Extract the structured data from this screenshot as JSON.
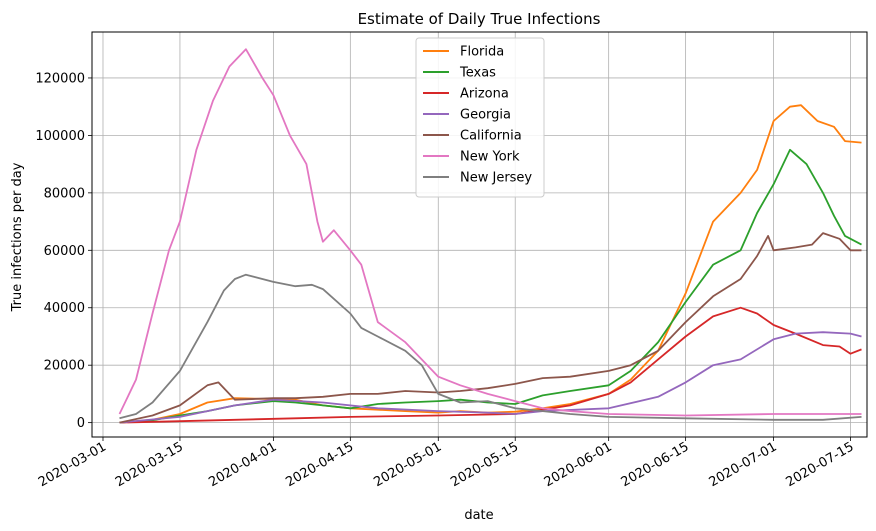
{
  "chart_data": {
    "type": "line",
    "title": "Estimate of Daily True Infections",
    "xlabel": "date",
    "ylabel": "True infections per day",
    "x_type": "date",
    "xlim": [
      "2020-02-28",
      "2020-07-18"
    ],
    "ylim": [
      -5000,
      136000
    ],
    "grid": true,
    "legend_position": "top-center",
    "x_ticks": [
      "2020-03-01",
      "2020-03-15",
      "2020-04-01",
      "2020-04-15",
      "2020-05-01",
      "2020-05-15",
      "2020-06-01",
      "2020-06-15",
      "2020-07-01",
      "2020-07-15"
    ],
    "y_ticks": [
      0,
      20000,
      40000,
      60000,
      80000,
      100000,
      120000
    ],
    "y_tick_labels": [
      "0",
      "20000",
      "40000",
      "60000",
      "80000",
      "100000",
      "120000"
    ],
    "series": [
      {
        "name": "Florida",
        "color": "#ff7f0e",
        "points": [
          [
            "2020-03-04",
            0
          ],
          [
            "2020-03-10",
            1000
          ],
          [
            "2020-03-15",
            3000
          ],
          [
            "2020-03-20",
            7000
          ],
          [
            "2020-03-25",
            8500
          ],
          [
            "2020-04-01",
            8200
          ],
          [
            "2020-04-05",
            8000
          ],
          [
            "2020-04-10",
            6000
          ],
          [
            "2020-04-15",
            5000
          ],
          [
            "2020-04-20",
            4500
          ],
          [
            "2020-04-25",
            4000
          ],
          [
            "2020-05-01",
            3500
          ],
          [
            "2020-05-05",
            4000
          ],
          [
            "2020-05-10",
            3500
          ],
          [
            "2020-05-15",
            3800
          ],
          [
            "2020-05-20",
            5000
          ],
          [
            "2020-05-25",
            6500
          ],
          [
            "2020-06-01",
            10000
          ],
          [
            "2020-06-05",
            15000
          ],
          [
            "2020-06-10",
            25000
          ],
          [
            "2020-06-15",
            45000
          ],
          [
            "2020-06-20",
            70000
          ],
          [
            "2020-06-25",
            80000
          ],
          [
            "2020-06-28",
            88000
          ],
          [
            "2020-07-01",
            105000
          ],
          [
            "2020-07-04",
            110000
          ],
          [
            "2020-07-06",
            110500
          ],
          [
            "2020-07-09",
            105000
          ],
          [
            "2020-07-12",
            103000
          ],
          [
            "2020-07-14",
            98000
          ],
          [
            "2020-07-17",
            97500
          ]
        ]
      },
      {
        "name": "Texas",
        "color": "#2ca02c",
        "points": [
          [
            "2020-03-04",
            0
          ],
          [
            "2020-03-10",
            800
          ],
          [
            "2020-03-15",
            2500
          ],
          [
            "2020-03-20",
            4000
          ],
          [
            "2020-03-25",
            6000
          ],
          [
            "2020-04-01",
            7500
          ],
          [
            "2020-04-05",
            7000
          ],
          [
            "2020-04-10",
            6000
          ],
          [
            "2020-04-15",
            5000
          ],
          [
            "2020-04-20",
            6500
          ],
          [
            "2020-04-25",
            7000
          ],
          [
            "2020-05-01",
            7500
          ],
          [
            "2020-05-05",
            8000
          ],
          [
            "2020-05-10",
            7000
          ],
          [
            "2020-05-15",
            6500
          ],
          [
            "2020-05-20",
            9500
          ],
          [
            "2020-05-25",
            11000
          ],
          [
            "2020-06-01",
            13000
          ],
          [
            "2020-06-05",
            18000
          ],
          [
            "2020-06-10",
            28000
          ],
          [
            "2020-06-15",
            42000
          ],
          [
            "2020-06-20",
            55000
          ],
          [
            "2020-06-25",
            60000
          ],
          [
            "2020-06-28",
            73000
          ],
          [
            "2020-07-01",
            83000
          ],
          [
            "2020-07-04",
            95000
          ],
          [
            "2020-07-07",
            90000
          ],
          [
            "2020-07-10",
            80000
          ],
          [
            "2020-07-12",
            72000
          ],
          [
            "2020-07-14",
            65000
          ],
          [
            "2020-07-17",
            62000
          ]
        ]
      },
      {
        "name": "Arizona",
        "color": "#d62728",
        "points": [
          [
            "2020-03-04",
            0
          ],
          [
            "2020-03-15",
            500
          ],
          [
            "2020-03-25",
            1000
          ],
          [
            "2020-04-05",
            1500
          ],
          [
            "2020-04-15",
            2000
          ],
          [
            "2020-05-01",
            2500
          ],
          [
            "2020-05-15",
            3000
          ],
          [
            "2020-05-25",
            6000
          ],
          [
            "2020-06-01",
            10000
          ],
          [
            "2020-06-05",
            14000
          ],
          [
            "2020-06-10",
            22000
          ],
          [
            "2020-06-15",
            30000
          ],
          [
            "2020-06-20",
            37000
          ],
          [
            "2020-06-25",
            40000
          ],
          [
            "2020-06-28",
            38000
          ],
          [
            "2020-07-01",
            34000
          ],
          [
            "2020-07-05",
            31000
          ],
          [
            "2020-07-10",
            27000
          ],
          [
            "2020-07-13",
            26500
          ],
          [
            "2020-07-15",
            24000
          ],
          [
            "2020-07-17",
            25500
          ]
        ]
      },
      {
        "name": "Georgia",
        "color": "#9467bd",
        "points": [
          [
            "2020-03-04",
            0
          ],
          [
            "2020-03-15",
            2000
          ],
          [
            "2020-03-25",
            6000
          ],
          [
            "2020-04-01",
            8000
          ],
          [
            "2020-04-10",
            7000
          ],
          [
            "2020-04-20",
            5000
          ],
          [
            "2020-05-01",
            4000
          ],
          [
            "2020-05-10",
            3500
          ],
          [
            "2020-05-15",
            3000
          ],
          [
            "2020-05-20",
            4000
          ],
          [
            "2020-06-01",
            5000
          ],
          [
            "2020-06-10",
            9000
          ],
          [
            "2020-06-15",
            14000
          ],
          [
            "2020-06-20",
            20000
          ],
          [
            "2020-06-25",
            22000
          ],
          [
            "2020-07-01",
            29000
          ],
          [
            "2020-07-05",
            31000
          ],
          [
            "2020-07-10",
            31500
          ],
          [
            "2020-07-15",
            31000
          ],
          [
            "2020-07-17",
            30000
          ]
        ]
      },
      {
        "name": "California",
        "color": "#8c564b",
        "points": [
          [
            "2020-03-04",
            0
          ],
          [
            "2020-03-10",
            2500
          ],
          [
            "2020-03-15",
            6000
          ],
          [
            "2020-03-20",
            13000
          ],
          [
            "2020-03-22",
            14000
          ],
          [
            "2020-03-25",
            8000
          ],
          [
            "2020-04-01",
            8500
          ],
          [
            "2020-04-05",
            8500
          ],
          [
            "2020-04-10",
            9000
          ],
          [
            "2020-04-15",
            10000
          ],
          [
            "2020-04-20",
            10000
          ],
          [
            "2020-04-25",
            11000
          ],
          [
            "2020-05-01",
            10500
          ],
          [
            "2020-05-05",
            11000
          ],
          [
            "2020-05-10",
            12000
          ],
          [
            "2020-05-15",
            13500
          ],
          [
            "2020-05-20",
            15500
          ],
          [
            "2020-05-25",
            16000
          ],
          [
            "2020-06-01",
            18000
          ],
          [
            "2020-06-05",
            20000
          ],
          [
            "2020-06-10",
            25000
          ],
          [
            "2020-06-15",
            35000
          ],
          [
            "2020-06-20",
            44000
          ],
          [
            "2020-06-25",
            50000
          ],
          [
            "2020-06-28",
            58000
          ],
          [
            "2020-06-30",
            65000
          ],
          [
            "2020-07-01",
            60000
          ],
          [
            "2020-07-05",
            61000
          ],
          [
            "2020-07-08",
            62000
          ],
          [
            "2020-07-10",
            66000
          ],
          [
            "2020-07-13",
            64000
          ],
          [
            "2020-07-15",
            60000
          ],
          [
            "2020-07-17",
            60000
          ]
        ]
      },
      {
        "name": "New York",
        "color": "#e377c2",
        "points": [
          [
            "2020-03-04",
            3000
          ],
          [
            "2020-03-07",
            15000
          ],
          [
            "2020-03-10",
            38000
          ],
          [
            "2020-03-13",
            60000
          ],
          [
            "2020-03-15",
            70000
          ],
          [
            "2020-03-18",
            95000
          ],
          [
            "2020-03-21",
            112000
          ],
          [
            "2020-03-24",
            124000
          ],
          [
            "2020-03-27",
            130000
          ],
          [
            "2020-03-30",
            120000
          ],
          [
            "2020-04-01",
            114000
          ],
          [
            "2020-04-04",
            100000
          ],
          [
            "2020-04-07",
            90000
          ],
          [
            "2020-04-09",
            70000
          ],
          [
            "2020-04-10",
            63000
          ],
          [
            "2020-04-12",
            67000
          ],
          [
            "2020-04-15",
            60000
          ],
          [
            "2020-04-17",
            55000
          ],
          [
            "2020-04-20",
            35000
          ],
          [
            "2020-04-25",
            28000
          ],
          [
            "2020-05-01",
            16000
          ],
          [
            "2020-05-05",
            13000
          ],
          [
            "2020-05-10",
            10000
          ],
          [
            "2020-05-15",
            7500
          ],
          [
            "2020-05-20",
            5000
          ],
          [
            "2020-05-25",
            4000
          ],
          [
            "2020-06-01",
            3000
          ],
          [
            "2020-06-15",
            2500
          ],
          [
            "2020-07-01",
            3000
          ],
          [
            "2020-07-17",
            3000
          ]
        ]
      },
      {
        "name": "New Jersey",
        "color": "#7f7f7f",
        "points": [
          [
            "2020-03-04",
            1500
          ],
          [
            "2020-03-07",
            3000
          ],
          [
            "2020-03-10",
            7000
          ],
          [
            "2020-03-15",
            18000
          ],
          [
            "2020-03-20",
            35000
          ],
          [
            "2020-03-23",
            46000
          ],
          [
            "2020-03-25",
            50000
          ],
          [
            "2020-03-27",
            51500
          ],
          [
            "2020-04-01",
            49000
          ],
          [
            "2020-04-05",
            47500
          ],
          [
            "2020-04-08",
            48000
          ],
          [
            "2020-04-10",
            46500
          ],
          [
            "2020-04-15",
            38000
          ],
          [
            "2020-04-17",
            33000
          ],
          [
            "2020-04-20",
            30000
          ],
          [
            "2020-04-25",
            25000
          ],
          [
            "2020-04-28",
            20000
          ],
          [
            "2020-05-01",
            10000
          ],
          [
            "2020-05-05",
            7000
          ],
          [
            "2020-05-10",
            7500
          ],
          [
            "2020-05-15",
            5000
          ],
          [
            "2020-05-20",
            4000
          ],
          [
            "2020-05-25",
            3000
          ],
          [
            "2020-06-01",
            2000
          ],
          [
            "2020-06-15",
            1500
          ],
          [
            "2020-07-01",
            1000
          ],
          [
            "2020-07-10",
            1000
          ],
          [
            "2020-07-17",
            2000
          ]
        ]
      }
    ]
  }
}
